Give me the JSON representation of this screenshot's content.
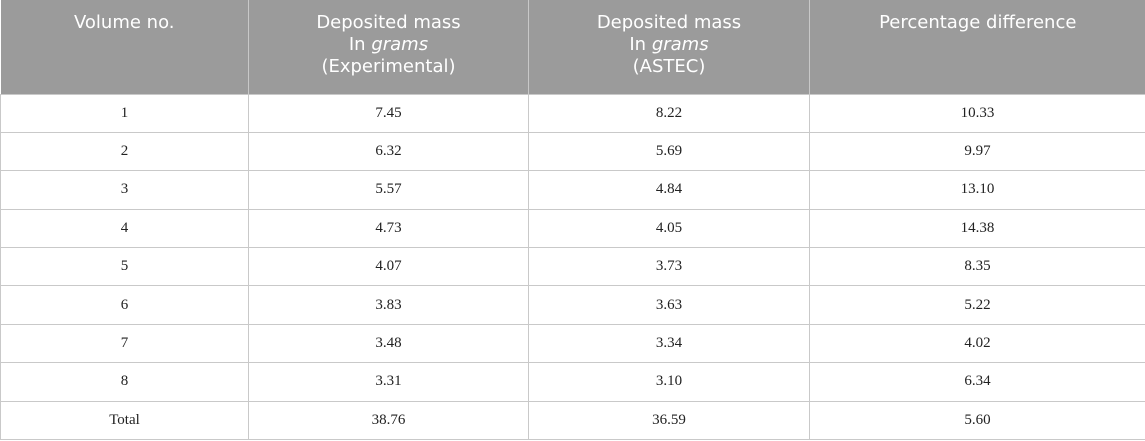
{
  "table": {
    "headers": [
      {
        "line1": "Volume no.",
        "line2_prefix": "",
        "line2_italic": "",
        "line3": ""
      },
      {
        "line1": "Deposited mass",
        "line2_prefix": "In ",
        "line2_italic": "grams",
        "line3": "(Experimental)"
      },
      {
        "line1": "Deposited mass",
        "line2_prefix": "In ",
        "line2_italic": "grams",
        "line3": "(ASTEC)"
      },
      {
        "line1": "Percentage difference",
        "line2_prefix": "",
        "line2_italic": "",
        "line3": ""
      }
    ],
    "rows": [
      [
        "1",
        "7.45",
        "8.22",
        "10.33"
      ],
      [
        "2",
        "6.32",
        "5.69",
        "9.97"
      ],
      [
        "3",
        "5.57",
        "4.84",
        "13.10"
      ],
      [
        "4",
        "4.73",
        "4.05",
        "14.38"
      ],
      [
        "5",
        "4.07",
        "3.73",
        "8.35"
      ],
      [
        "6",
        "3.83",
        "3.63",
        "5.22"
      ],
      [
        "7",
        "3.48",
        "3.34",
        "4.02"
      ],
      [
        "8",
        "3.31",
        "3.10",
        "6.34"
      ],
      [
        "Total",
        "38.76",
        "36.59",
        "5.60"
      ]
    ]
  }
}
